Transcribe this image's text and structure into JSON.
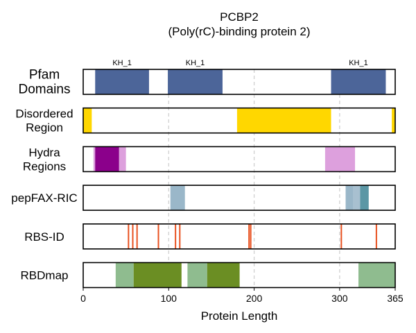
{
  "chart_data": {
    "type": "track",
    "title": "PCBP2",
    "subtitle": "(Poly(rC)-binding protein 2)",
    "xlabel": "Protein Length",
    "xlim": [
      0,
      365
    ],
    "xticks": [
      0,
      100,
      200,
      300,
      365
    ],
    "grid_x": [
      100,
      200,
      300
    ],
    "tracks": [
      {
        "label_lines": [
          "Pfam",
          "Domains"
        ],
        "segments": [
          {
            "start": 14,
            "end": 77,
            "color": "#4c6599",
            "label": "KH_1"
          },
          {
            "start": 99,
            "end": 163,
            "color": "#4c6599",
            "label": "KH_1"
          },
          {
            "start": 290,
            "end": 354,
            "color": "#4c6599",
            "label": "KH_1"
          }
        ]
      },
      {
        "label_lines": [
          "Disordered",
          "Region"
        ],
        "segments": [
          {
            "start": 0,
            "end": 10,
            "color": "#ffd700"
          },
          {
            "start": 180,
            "end": 290,
            "color": "#ffd700"
          },
          {
            "start": 361,
            "end": 365,
            "color": "#ffd700"
          }
        ]
      },
      {
        "label_lines": [
          "Hydra",
          "Regions"
        ],
        "segments": [
          {
            "start": 12,
            "end": 14,
            "color": "#dda0dd"
          },
          {
            "start": 14,
            "end": 42,
            "color": "#8b008b"
          },
          {
            "start": 42,
            "end": 50,
            "color": "#dda0dd"
          },
          {
            "start": 283,
            "end": 318,
            "color": "#dda0dd"
          }
        ]
      },
      {
        "label_lines": [
          "pepFAX-RIC"
        ],
        "segments": [
          {
            "start": 102,
            "end": 119,
            "color": "#9ab7c9"
          },
          {
            "start": 307,
            "end": 316,
            "color": "#9ab7c9"
          },
          {
            "start": 316,
            "end": 324,
            "color": "#a8c0d0"
          },
          {
            "start": 324,
            "end": 334,
            "color": "#5b97a5"
          }
        ]
      },
      {
        "label_lines": [
          "RBS-ID"
        ],
        "marks": [
          53,
          58,
          63,
          88,
          108,
          113,
          194,
          196,
          302,
          343
        ],
        "mark_color": "#e8501f"
      },
      {
        "label_lines": [
          "RBDmap"
        ],
        "segments": [
          {
            "start": 38,
            "end": 59,
            "color": "#8fbc8f"
          },
          {
            "start": 59,
            "end": 115,
            "color": "#6b8e23"
          },
          {
            "start": 122,
            "end": 145,
            "color": "#8fbc8f"
          },
          {
            "start": 145,
            "end": 183,
            "color": "#6b8e23"
          },
          {
            "start": 322,
            "end": 365,
            "color": "#8fbc8f"
          }
        ]
      }
    ]
  }
}
